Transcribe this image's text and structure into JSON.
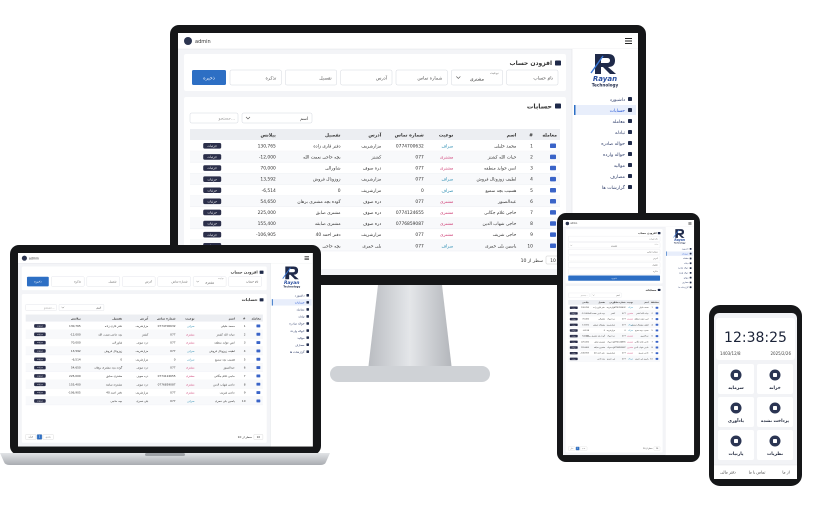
{
  "app": {
    "user": "admin",
    "brand": {
      "name": "Rayan",
      "tagline": "Technology"
    },
    "menu": [
      "داشبورد",
      "حسابات",
      "معامله",
      "تبادله",
      "حواله صادره",
      "حواله وارده",
      "مواليد",
      "مصارف",
      "گزارشات ها"
    ],
    "form": {
      "title": "افزودن حساب",
      "fields": [
        "نام حساب",
        "شماره تماس",
        "آدرس",
        "تفصیل",
        "تذکره"
      ],
      "type_label": "نوعیت",
      "type_value": "مشتری",
      "button": "ذخیره"
    },
    "accounts": {
      "title": "حسابات",
      "search_field": "اسم",
      "search_placeholder": "جستجو...",
      "columns": [
        "معامله",
        "#",
        "اسم",
        "نوعیت",
        "شماره تماس",
        "آدرس",
        "تفصیل",
        "بیلانس"
      ],
      "rows": [
        [
          1,
          "محمد خلیلی",
          "صراف",
          "0774700632",
          "مزارشریف",
          "دفتر قاری زاده",
          "130,765"
        ],
        [
          2,
          "حیات الله کشتز",
          "مشتری",
          "077",
          "کشتز",
          "بچه حاجی نعمت الله",
          "-12,000"
        ],
        [
          3,
          "انس جواید منطقه",
          "مشتری",
          "077",
          "دره صوف",
          "شاورالی",
          "70,000"
        ],
        [
          4,
          "لطیف زوزوتال فروش",
          "صراف",
          "077",
          "مزارشریف",
          "زوزوتال فروش",
          "13,592"
        ],
        [
          5,
          "هسیب بچه سمیع",
          "صراف",
          "0",
          "مزارشریف",
          "0",
          "-6,514"
        ],
        [
          6,
          "عبدالصبور",
          "مشتری",
          "077",
          "دره صوف",
          "گوده بچه مشتری برهان",
          "54,650"
        ],
        [
          7,
          "حاجی غلام جگانی",
          "مشتری",
          "0774124655",
          "دره صوف",
          "مشتری صابق",
          "225,000"
        ],
        [
          8,
          "حاجی شهاب الدین",
          "مشتری",
          "0776859087",
          "دره صوف",
          "مشتری صابقه",
          "155,400"
        ],
        [
          9,
          "حاجی شریف",
          "مشتری",
          "077",
          "مزارشریف",
          "دفتر احمد 40",
          "-106,905"
        ],
        [
          10,
          "یاسین بلی خمری",
          "صراف",
          "077",
          "بلی خمری",
          "بچه حاجی",
          null
        ]
      ],
      "action": "جزئیات",
      "footer": "سطر از 10",
      "page_size": "10",
      "pager": [
        "قبلی",
        "1",
        "بعدی"
      ]
    }
  },
  "phone": {
    "time": "12:38:25",
    "dates": [
      "1403/12/8",
      "2025/2/26"
    ],
    "tiles": [
      "خزانه",
      "سرمایه",
      "پرداخت نشده",
      "یادآوری",
      "نظریات",
      "پارتیات"
    ],
    "nav": [
      "از ما",
      "تماس با ما",
      "دفتر مالی"
    ]
  }
}
